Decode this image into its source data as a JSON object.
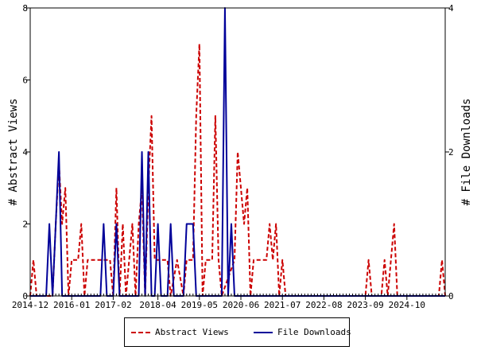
{
  "chart_data": {
    "type": "line",
    "ylabel_left": "# Abstract Views",
    "ylabel_right": "# File Downloads",
    "ylim_left": [
      0,
      8
    ],
    "ylim_right": [
      0,
      4
    ],
    "yticks_left": [
      "0",
      "2",
      "4",
      "6",
      "8"
    ],
    "yticks_right": [
      "0",
      "2",
      "4"
    ],
    "x_tick_labels": [
      "2014-12",
      "2016-01",
      "2017-02",
      "2018-04",
      "2019-05",
      "2020-06",
      "2021-07",
      "2022-08",
      "2023-09",
      "2024-10"
    ],
    "x_tick_months": [
      0,
      13,
      26,
      40,
      53,
      66,
      79,
      92,
      105,
      118
    ],
    "x_range_months": [
      0,
      130
    ],
    "series": [
      {
        "name": "Abstract Views",
        "axis": "left",
        "color": "#cc0000",
        "style": "dashed",
        "points": [
          [
            0,
            0
          ],
          [
            1,
            1
          ],
          [
            2,
            0
          ],
          [
            7,
            0
          ],
          [
            8,
            2
          ],
          [
            9,
            3.7
          ],
          [
            10,
            2
          ],
          [
            11,
            3
          ],
          [
            12,
            0
          ],
          [
            13,
            1
          ],
          [
            15,
            1
          ],
          [
            16,
            2
          ],
          [
            17,
            0
          ],
          [
            18,
            1
          ],
          [
            25,
            1
          ],
          [
            26,
            0
          ],
          [
            27,
            3
          ],
          [
            28,
            0
          ],
          [
            29,
            2
          ],
          [
            30,
            0
          ],
          [
            31,
            1
          ],
          [
            32,
            2
          ],
          [
            33,
            0
          ],
          [
            34,
            2
          ],
          [
            35,
            3
          ],
          [
            36,
            0
          ],
          [
            37,
            3
          ],
          [
            38,
            5
          ],
          [
            39,
            1
          ],
          [
            43,
            1
          ],
          [
            44,
            0
          ],
          [
            46,
            1
          ],
          [
            48,
            0
          ],
          [
            49,
            1
          ],
          [
            51,
            1
          ],
          [
            52,
            5
          ],
          [
            53,
            7
          ],
          [
            54,
            0
          ],
          [
            55,
            1
          ],
          [
            57,
            1
          ],
          [
            58,
            5
          ],
          [
            59,
            1
          ],
          [
            60,
            0
          ],
          [
            64,
            1
          ],
          [
            65,
            4
          ],
          [
            66,
            3
          ],
          [
            67,
            2
          ],
          [
            68,
            3
          ],
          [
            69,
            0
          ],
          [
            70,
            1
          ],
          [
            73,
            1
          ],
          [
            74,
            1
          ],
          [
            75,
            2
          ],
          [
            76,
            1
          ],
          [
            77,
            2
          ],
          [
            78,
            0
          ],
          [
            79,
            1
          ],
          [
            80,
            0
          ],
          [
            105,
            0
          ],
          [
            106,
            1
          ],
          [
            107,
            0
          ],
          [
            110,
            0
          ],
          [
            111,
            1
          ],
          [
            112,
            0
          ],
          [
            113,
            1
          ],
          [
            114,
            2
          ],
          [
            115,
            0
          ],
          [
            128,
            0
          ],
          [
            129,
            1
          ],
          [
            130,
            0
          ]
        ]
      },
      {
        "name": "File Downloads",
        "axis": "right",
        "color": "#000099",
        "style": "solid",
        "points": [
          [
            0,
            0
          ],
          [
            5,
            0
          ],
          [
            6,
            1
          ],
          [
            7,
            0
          ],
          [
            8,
            1
          ],
          [
            9,
            2
          ],
          [
            10,
            0
          ],
          [
            22,
            0
          ],
          [
            23,
            1
          ],
          [
            24,
            0
          ],
          [
            26,
            0
          ],
          [
            27,
            1
          ],
          [
            28,
            0
          ],
          [
            34,
            0
          ],
          [
            35,
            2
          ],
          [
            36,
            0
          ],
          [
            37,
            2
          ],
          [
            38,
            0
          ],
          [
            39,
            0
          ],
          [
            40,
            1
          ],
          [
            41,
            0
          ],
          [
            43,
            0
          ],
          [
            44,
            1
          ],
          [
            45,
            0
          ],
          [
            48,
            0
          ],
          [
            49,
            1
          ],
          [
            51,
            1
          ],
          [
            52,
            0
          ],
          [
            60,
            0
          ],
          [
            61,
            4
          ],
          [
            62,
            0
          ],
          [
            63,
            1
          ],
          [
            64,
            0
          ],
          [
            130,
            0
          ]
        ]
      }
    ],
    "grid": false,
    "legend_position": "bottom"
  },
  "legend": {
    "abstract_views": "Abstract Views",
    "file_downloads": "File Downloads"
  },
  "colors": {
    "abstract_views": "#cc0000",
    "file_downloads": "#000099",
    "axis": "#000000"
  }
}
